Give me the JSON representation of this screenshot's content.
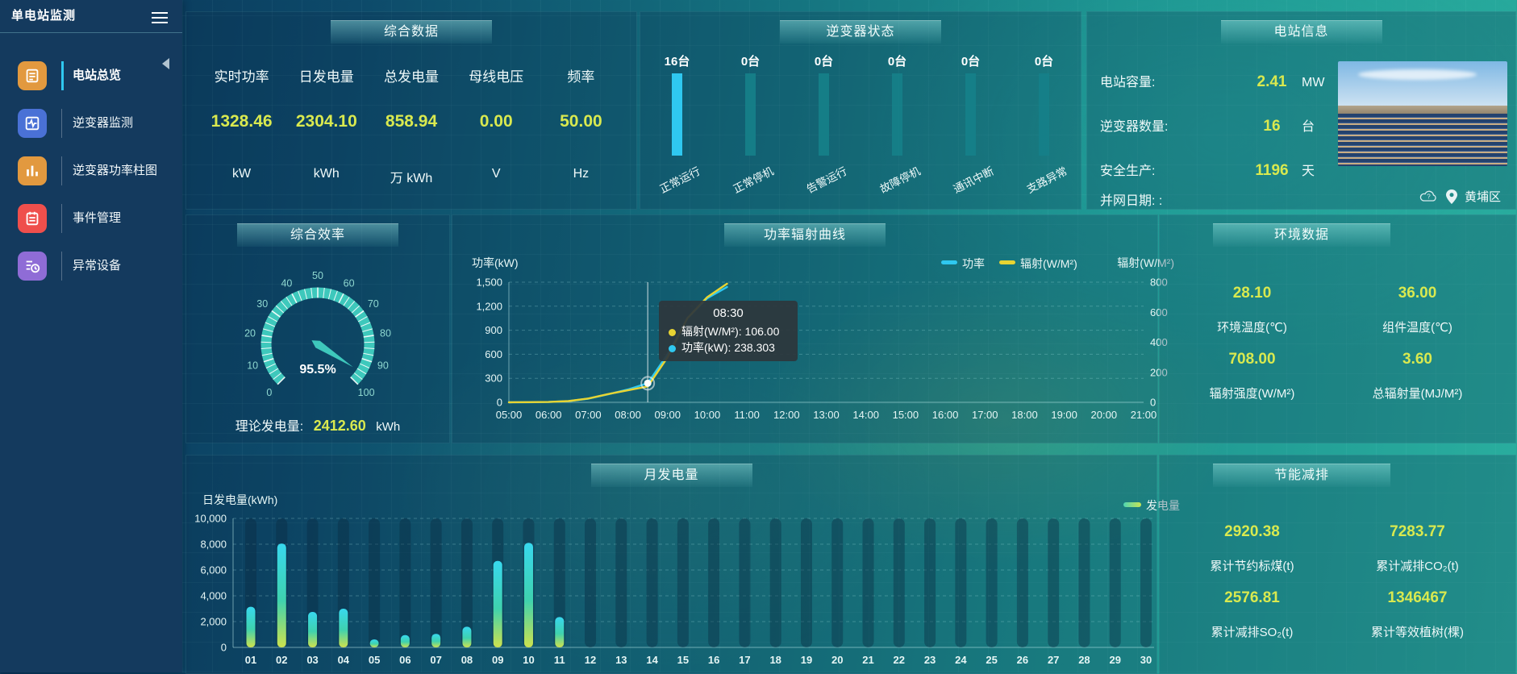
{
  "colors": {
    "accent_value": "#d9e94f",
    "cyan": "#2fc8f0",
    "teal": "#3ec8bc",
    "bar_teal": "#17828a",
    "legend_yellow": "#e8d432"
  },
  "sidebar": {
    "title": "单电站监测",
    "items": [
      {
        "label": "电站总览",
        "icon": "overview-doc",
        "color": "#e2993f",
        "active": true
      },
      {
        "label": "逆变器监测",
        "icon": "inverter-monitor",
        "color": "#4a71d6",
        "active": false
      },
      {
        "label": "逆变器功率柱图",
        "icon": "power-bars",
        "color": "#e2993f",
        "active": false
      },
      {
        "label": "事件管理",
        "icon": "event-clipboard",
        "color": "#ef4f4c",
        "active": false
      },
      {
        "label": "异常设备",
        "icon": "abnormal-clock",
        "color": "#8f6cd6",
        "active": false
      }
    ]
  },
  "overview": {
    "title": "综合数据",
    "metrics": [
      {
        "label": "实时功率",
        "value": "1328.46",
        "unit": "kW"
      },
      {
        "label": "日发电量",
        "value": "2304.10",
        "unit": "kWh"
      },
      {
        "label": "总发电量",
        "value": "858.94",
        "unit": "万 kWh"
      },
      {
        "label": "母线电压",
        "value": "0.00",
        "unit": "V"
      },
      {
        "label": "频率",
        "value": "50.00",
        "unit": "Hz"
      }
    ]
  },
  "inverter_status": {
    "title": "逆变器状态",
    "items": [
      {
        "count": "16台",
        "label": "正常运行",
        "highlight": true
      },
      {
        "count": "0台",
        "label": "正常停机",
        "highlight": false
      },
      {
        "count": "0台",
        "label": "告警运行",
        "highlight": false
      },
      {
        "count": "0台",
        "label": "故障停机",
        "highlight": false
      },
      {
        "count": "0台",
        "label": "通讯中断",
        "highlight": false
      },
      {
        "count": "0台",
        "label": "支路异常",
        "highlight": false
      }
    ]
  },
  "station_info": {
    "title": "电站信息",
    "rows": [
      {
        "label": "电站容量:",
        "value": "2.41",
        "unit": "MW"
      },
      {
        "label": "逆变器数量:",
        "value": "16",
        "unit": "台"
      },
      {
        "label": "安全生产:",
        "value": "1196",
        "unit": "天"
      }
    ],
    "grid_date_label": "并网日期:  :",
    "location": "黄埔区"
  },
  "environment": {
    "title": "环境数据",
    "stats": [
      {
        "value": "28.10",
        "label": "环境温度(℃)"
      },
      {
        "value": "36.00",
        "label": "组件温度(℃)"
      },
      {
        "value": "708.00",
        "label": "辐射强度(W/M²)"
      },
      {
        "value": "3.60",
        "label": "总辐射量(MJ/M²)"
      }
    ]
  },
  "saving": {
    "title": "节能减排",
    "stats": [
      {
        "value": "2920.38",
        "label": "累计节约标煤(t)"
      },
      {
        "value": "7283.77",
        "label": "累计减排CO₂(t)"
      },
      {
        "value": "2576.81",
        "label": "累计减排SO₂(t)"
      },
      {
        "value": "1346467",
        "label": "累计等效植树(棵)"
      }
    ]
  },
  "chart_data": [
    {
      "type": "gauge",
      "title": "综合效率",
      "min": 0,
      "max": 100,
      "value": 95.5,
      "label": "95.5%",
      "tick_labels": [
        0,
        10,
        20,
        30,
        40,
        50,
        60,
        70,
        80,
        90,
        100
      ],
      "color": "#3ec8bc",
      "bottom_label": "理论发电量:",
      "bottom_value": "2412.60",
      "bottom_unit": "kWh"
    },
    {
      "type": "line",
      "title": "功率辐射曲线",
      "x_range": [
        5,
        21
      ],
      "x_ticks": [
        "05:00",
        "06:00",
        "07:00",
        "08:00",
        "09:00",
        "10:00",
        "11:00",
        "12:00",
        "13:00",
        "14:00",
        "15:00",
        "16:00",
        "17:00",
        "18:00",
        "19:00",
        "20:00",
        "21:00"
      ],
      "left_axis": {
        "label": "功率(kW)",
        "min": 0,
        "max": 1500,
        "ticks": [
          "1,500",
          "1,200",
          "900",
          "600",
          "300",
          "0"
        ]
      },
      "right_axis": {
        "label": "辐射(W/M²)",
        "min": 0,
        "max": 800,
        "ticks": [
          "800",
          "600",
          "400",
          "200",
          "0"
        ]
      },
      "legend": [
        {
          "name": "功率",
          "color": "#2fc8f0"
        },
        {
          "name": "辐射(W/M²)",
          "color": "#e8d432"
        }
      ],
      "series": [
        {
          "name": "功率",
          "axis": "left",
          "color": "#2fc8f0",
          "points": [
            [
              5,
              0
            ],
            [
              5.5,
              1
            ],
            [
              6,
              4
            ],
            [
              6.5,
              14
            ],
            [
              7,
              45
            ],
            [
              7.5,
              100
            ],
            [
              8,
              160
            ],
            [
              8.5,
              238.3
            ],
            [
              9,
              600
            ],
            [
              9.5,
              1050
            ],
            [
              10,
              1300
            ],
            [
              10.5,
              1440
            ]
          ]
        },
        {
          "name": "辐射(W/M²)",
          "axis": "right",
          "color": "#e8d432",
          "points": [
            [
              5,
              0
            ],
            [
              5.5,
              1
            ],
            [
              6,
              2
            ],
            [
              6.5,
              8
            ],
            [
              7,
              25
            ],
            [
              7.5,
              55
            ],
            [
              8,
              80
            ],
            [
              8.5,
              106
            ],
            [
              9,
              300
            ],
            [
              9.5,
              560
            ],
            [
              10,
              700
            ],
            [
              10.5,
              790
            ]
          ]
        }
      ],
      "crosshair_x": 8.5,
      "tooltip": {
        "time": "08:30",
        "rows": [
          {
            "color": "#e8d432",
            "text": "辐射(W/M²): 106.00"
          },
          {
            "color": "#2fc8f0",
            "text": "功率(kW): 238.303"
          }
        ]
      }
    },
    {
      "type": "bar",
      "title": "月发电量",
      "ylabel": "日发电量(kWh)",
      "ylim": [
        0,
        10000
      ],
      "y_ticks": [
        "10,000",
        "8,000",
        "6,000",
        "4,000",
        "2,000",
        "0"
      ],
      "legend": [
        {
          "name": "发电量"
        }
      ],
      "categories": [
        "01",
        "02",
        "03",
        "04",
        "05",
        "06",
        "07",
        "08",
        "09",
        "10",
        "11",
        "12",
        "13",
        "14",
        "15",
        "16",
        "17",
        "18",
        "19",
        "20",
        "21",
        "22",
        "23",
        "24",
        "25",
        "26",
        "27",
        "28",
        "29",
        "30"
      ],
      "values": [
        3150,
        8050,
        2750,
        3000,
        620,
        950,
        1050,
        1600,
        6700,
        8100,
        2350,
        0,
        0,
        0,
        0,
        0,
        0,
        0,
        0,
        0,
        0,
        0,
        0,
        0,
        0,
        0,
        0,
        0,
        0,
        0
      ]
    }
  ]
}
